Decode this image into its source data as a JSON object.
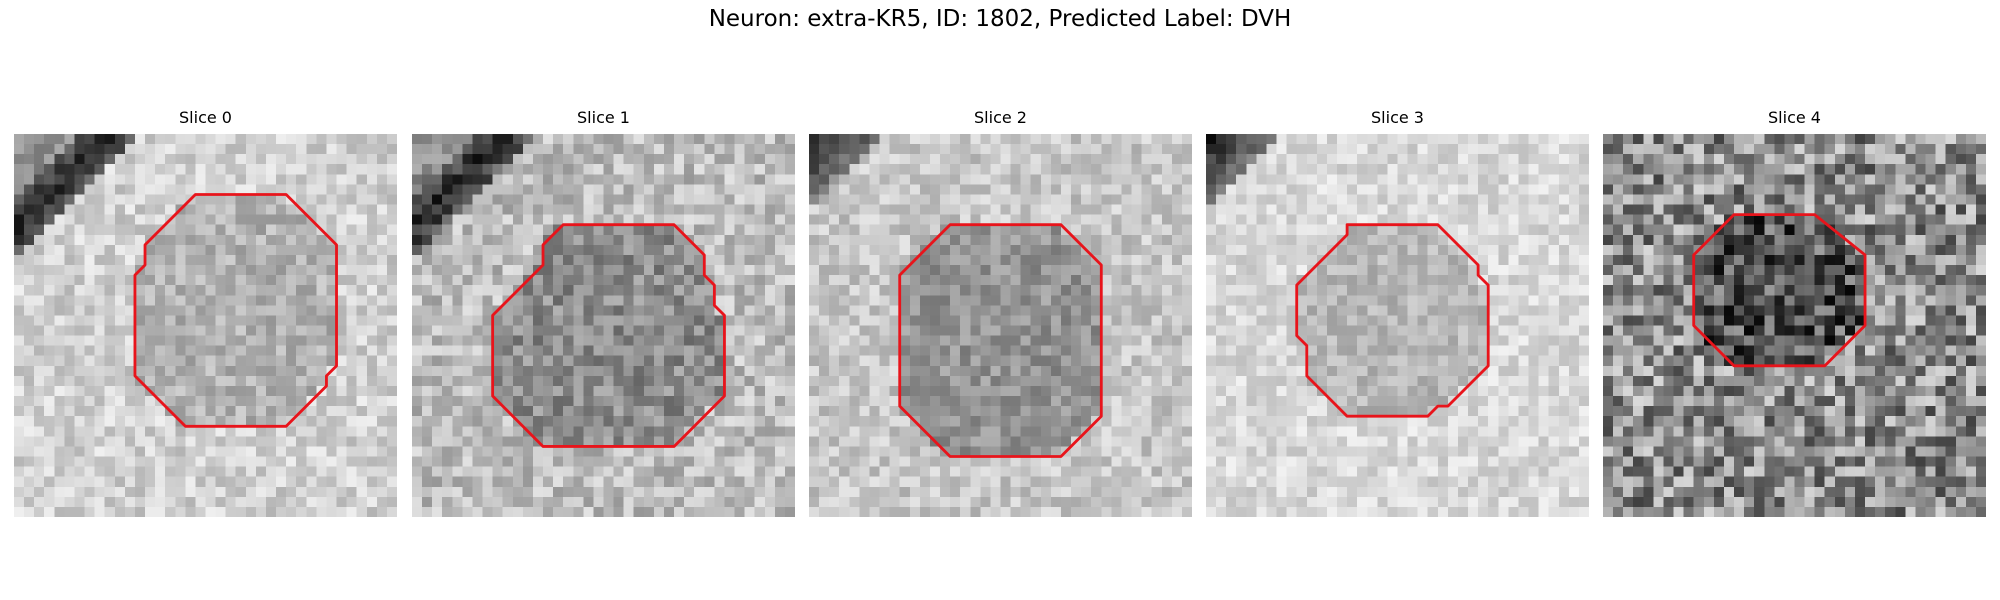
{
  "figure": {
    "title": "Neuron: extra-KR5, ID: 1802, Predicted Label: DVH",
    "contour_color": "#e8141b"
  },
  "panels": [
    {
      "title": "Slice 0",
      "base_tone": 0.82,
      "noise": 0.12,
      "dark_band": "upper-left diagonal",
      "blob_tone": 0.7,
      "contour": [
        [
          19,
          6
        ],
        [
          27,
          6
        ],
        [
          32,
          11
        ],
        [
          32,
          23
        ],
        [
          31,
          24
        ],
        [
          31,
          25
        ],
        [
          27,
          29
        ],
        [
          17,
          29
        ],
        [
          12,
          24
        ],
        [
          12,
          14
        ],
        [
          13,
          13
        ],
        [
          13,
          11
        ],
        [
          18,
          6
        ]
      ]
    },
    {
      "title": "Slice 1",
      "base_tone": 0.74,
      "noise": 0.15,
      "dark_band": "upper-left diagonal",
      "blob_tone": 0.55,
      "contour": [
        [
          15,
          9
        ],
        [
          26,
          9
        ],
        [
          29,
          12
        ],
        [
          29,
          14
        ],
        [
          30,
          15
        ],
        [
          30,
          17
        ],
        [
          31,
          18
        ],
        [
          31,
          26
        ],
        [
          26,
          31
        ],
        [
          13,
          31
        ],
        [
          8,
          26
        ],
        [
          8,
          18
        ],
        [
          13,
          13
        ],
        [
          13,
          11
        ],
        [
          14,
          10
        ]
      ]
    },
    {
      "title": "Slice 2",
      "base_tone": 0.78,
      "noise": 0.12,
      "dark_band": "upper-left corner",
      "blob_tone": 0.58,
      "contour": [
        [
          14,
          9
        ],
        [
          25,
          9
        ],
        [
          29,
          13
        ],
        [
          29,
          28
        ],
        [
          25,
          32
        ],
        [
          14,
          32
        ],
        [
          9,
          27
        ],
        [
          9,
          14
        ],
        [
          13,
          10
        ]
      ]
    },
    {
      "title": "Slice 3",
      "base_tone": 0.85,
      "noise": 0.1,
      "dark_band": "upper-left corner",
      "blob_tone": 0.72,
      "contour": [
        [
          14,
          9
        ],
        [
          23,
          9
        ],
        [
          27,
          13
        ],
        [
          27,
          14
        ],
        [
          28,
          15
        ],
        [
          28,
          23
        ],
        [
          24,
          27
        ],
        [
          23,
          27
        ],
        [
          22,
          28
        ],
        [
          14,
          28
        ],
        [
          10,
          24
        ],
        [
          10,
          21
        ],
        [
          9,
          20
        ],
        [
          9,
          15
        ],
        [
          14,
          10
        ]
      ]
    },
    {
      "title": "Slice 4",
      "base_tone": 0.55,
      "noise": 0.3,
      "dark_band": "none",
      "blob_tone": 0.32,
      "contour": [
        [
          13,
          8
        ],
        [
          21,
          8
        ],
        [
          26,
          12
        ],
        [
          26,
          19
        ],
        [
          22,
          23
        ],
        [
          13,
          23
        ],
        [
          9,
          19
        ],
        [
          9,
          12
        ],
        [
          13,
          8
        ]
      ]
    }
  ]
}
